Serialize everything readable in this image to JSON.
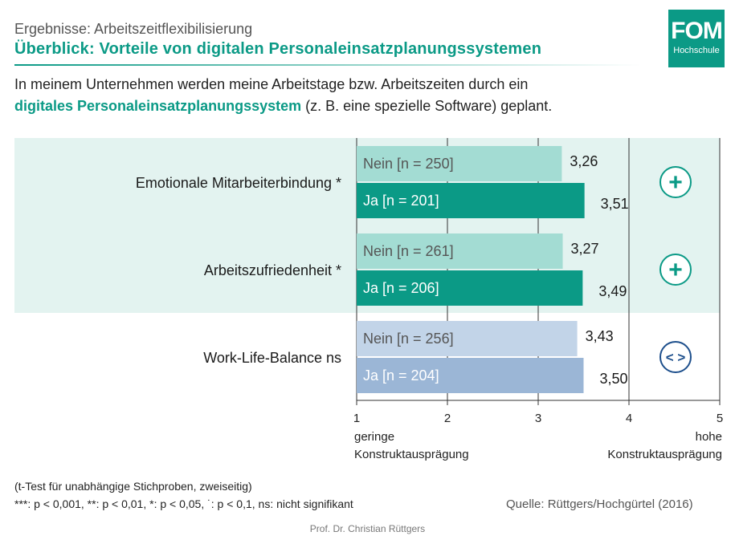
{
  "header": {
    "supertitle": "Ergebnisse: Arbeitszeitflexibilisierung",
    "title": "Überblick: Vorteile von digitalen Personaleinsatzplanungssystemen"
  },
  "logo": {
    "main": "FOM",
    "sub": "Hochschule"
  },
  "question": {
    "part1": "In meinem Unternehmen werden meine Arbeitstage bzw. Arbeitszeiten durch ein",
    "highlight": "digitales Personaleinsatzplanungssystem",
    "part2": " (z. B. eine spezielle Software) geplant."
  },
  "chart_data": {
    "type": "bar",
    "orientation": "horizontal",
    "xlim": [
      1,
      5
    ],
    "x_ticks": [
      "1",
      "2",
      "3",
      "4",
      "5"
    ],
    "x_low_label": [
      "geringe",
      "Konstruktausprägung"
    ],
    "x_high_label": [
      "hohe",
      "Konstruktausprägung"
    ],
    "groups": [
      {
        "label": "Emotionale Mitarbeiterbindung *",
        "highlighted": true,
        "symbol": "+",
        "bars": [
          {
            "label": "Nein [n = 250]",
            "value": 3.26,
            "value_label": "3,26",
            "color": "#a3dcd3",
            "text_color": "#555555"
          },
          {
            "label": "Ja [n = 201]",
            "value": 3.51,
            "value_label": "3,51",
            "color": "#0b9a86",
            "text_color": "#ffffff"
          }
        ]
      },
      {
        "label": "Arbeitszufriedenheit *",
        "highlighted": true,
        "symbol": "+",
        "bars": [
          {
            "label": "Nein [n = 261]",
            "value": 3.27,
            "value_label": "3,27",
            "color": "#a3dcd3",
            "text_color": "#555555"
          },
          {
            "label": "Ja [n = 206]",
            "value": 3.49,
            "value_label": "3,49",
            "color": "#0b9a86",
            "text_color": "#ffffff"
          }
        ]
      },
      {
        "label": "Work-Life-Balance ns",
        "highlighted": false,
        "symbol": "<>",
        "bars": [
          {
            "label": "Nein [n = 256]",
            "value": 3.43,
            "value_label": "3,43",
            "color": "#c2d4e8",
            "text_color": "#555555"
          },
          {
            "label": "Ja [n = 204]",
            "value": 3.5,
            "value_label": "3,50",
            "color": "#9bb6d6",
            "text_color": "#ffffff"
          }
        ]
      }
    ],
    "colors": {
      "band": "#e3f3f0",
      "grid": "#333333",
      "plus": "#0b9a86",
      "neutral": "#1d4f8c"
    }
  },
  "footnotes": {
    "line1": "(t-Test für unabhängige Stichproben, zweiseitig)",
    "line2": "***: p < 0,001,  **: p < 0,01,  *: p < 0,05,  ˙: p < 0,1, ns: nicht signifikant",
    "source": "Quelle: Rüttgers/Hochgürtel (2016)",
    "author": "Prof. Dr. Christian Rüttgers"
  }
}
